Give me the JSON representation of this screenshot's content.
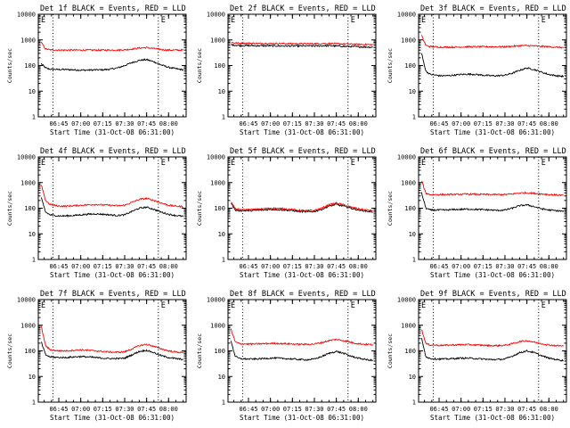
{
  "figure": {
    "xlabel": "Start Time (31-Oct-08 06:31:00)",
    "ylabel": "Counts/sec",
    "x_tick_labels": [
      "06:45",
      "07:00",
      "07:15",
      "07:30",
      "07:45",
      "08:00"
    ],
    "y_tick_labels": [
      "10000",
      "1000",
      "100",
      "10",
      "1"
    ],
    "colors": {
      "events": "#000000",
      "lld": "#ff0000"
    }
  },
  "chart_data": [
    {
      "type": "line",
      "title": "Det 1f BLACK = Events, RED = LLD",
      "xlabel": "Start Time (31-Oct-08 06:31:00)",
      "ylabel": "Counts/sec",
      "x": [
        "06:33",
        "06:36",
        "06:39",
        "06:45",
        "06:50",
        "06:55",
        "07:00",
        "07:05",
        "07:10",
        "07:15",
        "07:20",
        "07:25",
        "07:30",
        "07:35",
        "07:40",
        "07:45",
        "07:50",
        "07:55",
        "08:00",
        "08:05",
        "08:10"
      ],
      "x_range": [
        "06:31",
        "08:12"
      ],
      "ylim": [
        1,
        10000
      ],
      "yscale": "log",
      "x_axis_markers": [
        "E",
        "E"
      ],
      "vlines": [
        "06:41",
        "07:53"
      ],
      "series": [
        {
          "name": "Events",
          "color": "#000000",
          "values": [
            120,
            80,
            72,
            70,
            70,
            68,
            66,
            66,
            68,
            68,
            72,
            80,
            100,
            130,
            160,
            170,
            140,
            105,
            85,
            75,
            68
          ]
        },
        {
          "name": "LLD",
          "color": "#ff0000",
          "values": [
            800,
            440,
            410,
            400,
            400,
            400,
            400,
            400,
            400,
            400,
            400,
            400,
            410,
            440,
            480,
            500,
            460,
            420,
            400,
            400,
            400
          ]
        }
      ]
    },
    {
      "type": "line",
      "title": "Det 2f BLACK = Events, RED = LLD",
      "xlabel": "Start Time (31-Oct-08 06:31:00)",
      "ylabel": "Counts/sec",
      "x": [
        "06:33",
        "06:36",
        "06:39",
        "06:45",
        "06:50",
        "06:55",
        "07:00",
        "07:05",
        "07:10",
        "07:15",
        "07:20",
        "07:25",
        "07:30",
        "07:35",
        "07:40",
        "07:45",
        "07:50",
        "07:55",
        "08:00",
        "08:05",
        "08:10"
      ],
      "x_range": [
        "06:31",
        "08:12"
      ],
      "ylim": [
        1,
        10000
      ],
      "yscale": "log",
      "x_axis_markers": [
        "E",
        "E"
      ],
      "vlines": [
        "06:41",
        "07:53"
      ],
      "series": [
        {
          "name": "Events",
          "color": "#000000",
          "values": [
            650,
            620,
            600,
            600,
            590,
            590,
            590,
            580,
            580,
            580,
            580,
            580,
            580,
            590,
            590,
            580,
            560,
            550,
            540,
            530,
            520
          ]
        },
        {
          "name": "LLD",
          "color": "#ff0000",
          "values": [
            800,
            760,
            740,
            740,
            730,
            730,
            720,
            720,
            720,
            710,
            710,
            710,
            710,
            720,
            720,
            710,
            690,
            680,
            670,
            660,
            650
          ]
        }
      ]
    },
    {
      "type": "line",
      "title": "Det 3f BLACK = Events, RED = LLD",
      "xlabel": "Start Time (31-Oct-08 06:31:00)",
      "ylabel": "Counts/sec",
      "x": [
        "06:33",
        "06:36",
        "06:39",
        "06:45",
        "06:50",
        "06:55",
        "07:00",
        "07:05",
        "07:10",
        "07:15",
        "07:20",
        "07:25",
        "07:30",
        "07:35",
        "07:40",
        "07:45",
        "07:50",
        "07:55",
        "08:00",
        "08:05",
        "08:10"
      ],
      "x_range": [
        "06:31",
        "08:12"
      ],
      "ylim": [
        1,
        10000
      ],
      "yscale": "log",
      "x_axis_markers": [
        "E",
        "E"
      ],
      "vlines": [
        "06:41",
        "07:53"
      ],
      "series": [
        {
          "name": "Events",
          "color": "#000000",
          "values": [
            300,
            60,
            45,
            40,
            40,
            42,
            45,
            46,
            45,
            42,
            40,
            40,
            42,
            50,
            65,
            80,
            70,
            55,
            45,
            40,
            38
          ]
        },
        {
          "name": "LLD",
          "color": "#ff0000",
          "values": [
            1500,
            600,
            550,
            520,
            520,
            520,
            530,
            540,
            540,
            540,
            540,
            540,
            540,
            560,
            590,
            600,
            580,
            560,
            540,
            520,
            500
          ]
        }
      ]
    },
    {
      "type": "line",
      "title": "Det 4f BLACK = Events, RED = LLD",
      "xlabel": "Start Time (31-Oct-08 06:31:00)",
      "ylabel": "Counts/sec",
      "x": [
        "06:33",
        "06:36",
        "06:39",
        "06:45",
        "06:50",
        "06:55",
        "07:00",
        "07:05",
        "07:10",
        "07:15",
        "07:20",
        "07:25",
        "07:30",
        "07:35",
        "07:40",
        "07:45",
        "07:50",
        "07:55",
        "08:00",
        "08:05",
        "08:10"
      ],
      "x_range": [
        "06:31",
        "08:12"
      ],
      "ylim": [
        1,
        10000
      ],
      "yscale": "log",
      "x_axis_markers": [
        "E",
        "E"
      ],
      "vlines": [
        "06:41",
        "07:53"
      ],
      "series": [
        {
          "name": "Events",
          "color": "#000000",
          "values": [
            250,
            70,
            55,
            50,
            50,
            52,
            55,
            58,
            60,
            58,
            55,
            52,
            55,
            75,
            100,
            110,
            90,
            70,
            58,
            52,
            48
          ]
        },
        {
          "name": "LLD",
          "color": "#ff0000",
          "values": [
            800,
            200,
            140,
            120,
            120,
            125,
            130,
            135,
            140,
            135,
            130,
            125,
            130,
            170,
            220,
            240,
            200,
            160,
            130,
            120,
            115
          ]
        }
      ]
    },
    {
      "type": "line",
      "title": "Det 5f BLACK = Events, RED = LLD",
      "xlabel": "Start Time (31-Oct-08 06:31:00)",
      "ylabel": "Counts/sec",
      "x": [
        "06:33",
        "06:36",
        "06:39",
        "06:45",
        "06:50",
        "06:55",
        "07:00",
        "07:05",
        "07:10",
        "07:15",
        "07:20",
        "07:25",
        "07:30",
        "07:35",
        "07:40",
        "07:45",
        "07:50",
        "07:55",
        "08:00",
        "08:05",
        "08:10"
      ],
      "x_range": [
        "06:31",
        "08:12"
      ],
      "ylim": [
        1,
        10000
      ],
      "yscale": "log",
      "x_axis_markers": [
        "E",
        "E"
      ],
      "vlines": [
        "06:41",
        "07:53"
      ],
      "series": [
        {
          "name": "Events",
          "color": "#000000",
          "values": [
            160,
            85,
            80,
            80,
            82,
            85,
            90,
            88,
            85,
            80,
            75,
            72,
            75,
            90,
            120,
            140,
            120,
            100,
            85,
            78,
            72
          ]
        },
        {
          "name": "LLD",
          "color": "#ff0000",
          "values": [
            180,
            95,
            88,
            88,
            90,
            95,
            100,
            98,
            95,
            88,
            82,
            80,
            82,
            100,
            135,
            160,
            135,
            110,
            95,
            86,
            80
          ]
        }
      ]
    },
    {
      "type": "line",
      "title": "Det 6f BLACK = Events, RED = LLD",
      "xlabel": "Start Time (31-Oct-08 06:31:00)",
      "ylabel": "Counts/sec",
      "x": [
        "06:33",
        "06:36",
        "06:39",
        "06:45",
        "06:50",
        "06:55",
        "07:00",
        "07:05",
        "07:10",
        "07:15",
        "07:20",
        "07:25",
        "07:30",
        "07:35",
        "07:40",
        "07:45",
        "07:50",
        "07:55",
        "08:00",
        "08:05",
        "08:10"
      ],
      "x_range": [
        "06:31",
        "08:12"
      ],
      "ylim": [
        1,
        10000
      ],
      "yscale": "log",
      "x_axis_markers": [
        "E",
        "E"
      ],
      "vlines": [
        "06:41",
        "07:53"
      ],
      "series": [
        {
          "name": "Events",
          "color": "#000000",
          "values": [
            400,
            100,
            85,
            85,
            85,
            88,
            90,
            92,
            90,
            88,
            85,
            82,
            85,
            100,
            125,
            135,
            115,
            95,
            85,
            80,
            75
          ]
        },
        {
          "name": "LLD",
          "color": "#ff0000",
          "values": [
            1200,
            380,
            340,
            340,
            340,
            345,
            350,
            355,
            350,
            345,
            340,
            340,
            340,
            360,
            390,
            400,
            380,
            360,
            340,
            330,
            320
          ]
        }
      ]
    },
    {
      "type": "line",
      "title": "Det 7f BLACK = Events, RED = LLD",
      "xlabel": "Start Time (31-Oct-08 06:31:00)",
      "ylabel": "Counts/sec",
      "x": [
        "06:33",
        "06:36",
        "06:39",
        "06:45",
        "06:50",
        "06:55",
        "07:00",
        "07:05",
        "07:10",
        "07:15",
        "07:20",
        "07:25",
        "07:30",
        "07:35",
        "07:40",
        "07:45",
        "07:50",
        "07:55",
        "08:00",
        "08:05",
        "08:10"
      ],
      "x_range": [
        "06:31",
        "08:12"
      ],
      "ylim": [
        1,
        10000
      ],
      "yscale": "log",
      "x_axis_markers": [
        "E",
        "E"
      ],
      "vlines": [
        "06:41",
        "07:53"
      ],
      "series": [
        {
          "name": "Events",
          "color": "#000000",
          "values": [
            220,
            70,
            58,
            55,
            55,
            58,
            60,
            58,
            55,
            52,
            50,
            50,
            52,
            70,
            95,
            105,
            85,
            65,
            55,
            50,
            46
          ]
        },
        {
          "name": "LLD",
          "color": "#ff0000",
          "values": [
            900,
            160,
            110,
            100,
            100,
            105,
            110,
            105,
            100,
            95,
            90,
            88,
            92,
            120,
            160,
            180,
            150,
            120,
            100,
            90,
            85
          ]
        }
      ]
    },
    {
      "type": "line",
      "title": "Det 8f BLACK = Events, RED = LLD",
      "xlabel": "Start Time (31-Oct-08 06:31:00)",
      "ylabel": "Counts/sec",
      "x": [
        "06:33",
        "06:36",
        "06:39",
        "06:45",
        "06:50",
        "06:55",
        "07:00",
        "07:05",
        "07:10",
        "07:15",
        "07:20",
        "07:25",
        "07:30",
        "07:35",
        "07:40",
        "07:45",
        "07:50",
        "07:55",
        "08:00",
        "08:05",
        "08:10"
      ],
      "x_range": [
        "06:31",
        "08:12"
      ],
      "ylim": [
        1,
        10000
      ],
      "yscale": "log",
      "x_axis_markers": [
        "E",
        "E"
      ],
      "vlines": [
        "06:41",
        "07:53"
      ],
      "series": [
        {
          "name": "Events",
          "color": "#000000",
          "values": [
            250,
            60,
            50,
            48,
            48,
            50,
            52,
            52,
            50,
            48,
            46,
            45,
            48,
            60,
            80,
            95,
            80,
            62,
            52,
            46,
            42
          ]
        },
        {
          "name": "LLD",
          "color": "#ff0000",
          "values": [
            700,
            220,
            190,
            185,
            185,
            190,
            195,
            195,
            190,
            185,
            180,
            180,
            185,
            210,
            250,
            280,
            250,
            215,
            190,
            180,
            175
          ]
        }
      ]
    },
    {
      "type": "line",
      "title": "Det 9f BLACK = Events, RED = LLD",
      "xlabel": "Start Time (31-Oct-08 06:31:00)",
      "ylabel": "Counts/sec",
      "x": [
        "06:33",
        "06:36",
        "06:39",
        "06:45",
        "06:50",
        "06:55",
        "07:00",
        "07:05",
        "07:10",
        "07:15",
        "07:20",
        "07:25",
        "07:30",
        "07:35",
        "07:40",
        "07:45",
        "07:50",
        "07:55",
        "08:00",
        "08:05",
        "08:10"
      ],
      "x_range": [
        "06:31",
        "08:12"
      ],
      "ylim": [
        1,
        10000
      ],
      "yscale": "log",
      "x_axis_markers": [
        "E",
        "E"
      ],
      "vlines": [
        "06:41",
        "07:53"
      ],
      "series": [
        {
          "name": "Events",
          "color": "#000000",
          "values": [
            300,
            60,
            50,
            48,
            48,
            50,
            52,
            52,
            50,
            48,
            46,
            46,
            48,
            62,
            85,
            100,
            85,
            65,
            52,
            46,
            42
          ]
        },
        {
          "name": "LLD",
          "color": "#ff0000",
          "values": [
            700,
            190,
            170,
            165,
            165,
            170,
            175,
            175,
            170,
            165,
            160,
            160,
            165,
            190,
            230,
            250,
            220,
            190,
            170,
            160,
            155
          ]
        }
      ]
    }
  ]
}
